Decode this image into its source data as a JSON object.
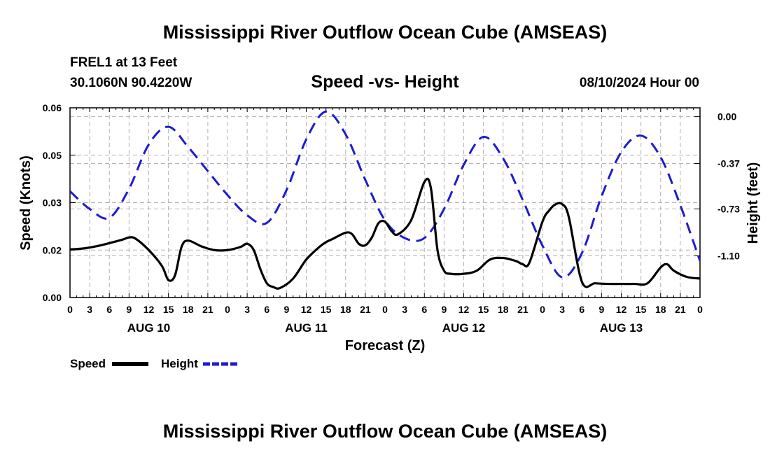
{
  "page": {
    "title": "Mississippi River Outflow Ocean Cube (AMSEAS)",
    "footer_title": "Mississippi River Outflow Ocean Cube (AMSEAS)",
    "station": "FREL1 at 13 Feet",
    "coords": "30.1060N  90.4220W",
    "date": "08/10/2024 Hour 00"
  },
  "chart_data": {
    "type": "line",
    "title": "Speed -vs- Height",
    "xlabel": "Forecast (Z)",
    "ylabel": "Speed (Knots)",
    "y2label": "Height (feet)",
    "xlim": [
      0,
      96
    ],
    "ylim": [
      0,
      0.06
    ],
    "y2lim": [
      -1.43,
      0.07
    ],
    "grid": true,
    "x_tick_step_hours": 3,
    "x_tick_labels": [
      "0",
      "3",
      "6",
      "9",
      "12",
      "15",
      "18",
      "21",
      "0",
      "3",
      "6",
      "9",
      "12",
      "15",
      "18",
      "21",
      "0",
      "3",
      "6",
      "9",
      "12",
      "15",
      "18",
      "21",
      "0",
      "3",
      "6",
      "9",
      "12",
      "15",
      "18",
      "21",
      "0"
    ],
    "y_tick_labels": [
      "0.00",
      "0.02",
      "0.03",
      "0.05",
      "0.06"
    ],
    "y_ticks": [
      0,
      0.015,
      0.03,
      0.045,
      0.06
    ],
    "y2_ticks": [
      0.0,
      -0.37,
      -0.73,
      -1.1
    ],
    "y2_tick_labels": [
      "0.00",
      "-0.37",
      "-0.73",
      "-1.10"
    ],
    "day_labels": [
      {
        "hour": 12,
        "label": "AUG 10"
      },
      {
        "hour": 36,
        "label": "AUG 11"
      },
      {
        "hour": 60,
        "label": "AUG 12"
      },
      {
        "hour": 84,
        "label": "AUG 13"
      }
    ],
    "legend": {
      "position": "bottom-left",
      "speed_label": "Speed",
      "height_label": "Height"
    },
    "colors": {
      "speed": "#000000",
      "height": "#1c1cd0",
      "grid": "#b4b4b4"
    },
    "series": [
      {
        "name": "Speed",
        "axis": "left",
        "x": [
          0,
          2,
          4,
          6,
          8,
          9,
          10,
          12,
          14,
          15,
          16,
          17,
          18,
          20,
          22,
          24,
          26,
          27,
          28,
          29,
          30,
          31,
          32,
          34,
          36,
          38,
          39,
          40,
          42,
          43,
          44,
          45,
          46,
          47,
          48,
          49,
          50,
          52,
          54,
          55,
          56,
          57,
          58,
          60,
          62,
          64,
          66,
          68,
          69,
          70,
          72,
          73,
          74,
          75,
          76,
          78,
          80,
          82,
          84,
          86,
          88,
          90,
          91,
          92,
          94,
          96
        ],
        "y": [
          0.0152,
          0.0155,
          0.0162,
          0.0172,
          0.0183,
          0.019,
          0.0186,
          0.015,
          0.01,
          0.0055,
          0.007,
          0.016,
          0.018,
          0.0162,
          0.015,
          0.015,
          0.016,
          0.017,
          0.015,
          0.009,
          0.0045,
          0.0033,
          0.003,
          0.006,
          0.012,
          0.016,
          0.0175,
          0.0185,
          0.0205,
          0.02,
          0.017,
          0.0165,
          0.019,
          0.0235,
          0.024,
          0.021,
          0.02,
          0.0245,
          0.0365,
          0.0345,
          0.015,
          0.0085,
          0.0075,
          0.0075,
          0.0085,
          0.012,
          0.0125,
          0.0115,
          0.0105,
          0.011,
          0.024,
          0.0275,
          0.0295,
          0.0295,
          0.0255,
          0.005,
          0.0045,
          0.0043,
          0.0043,
          0.0043,
          0.0045,
          0.0095,
          0.0105,
          0.0085,
          0.0065,
          0.006
        ]
      },
      {
        "name": "Height",
        "axis": "right",
        "x": [
          0,
          3,
          6,
          9,
          12,
          15,
          18,
          21,
          24,
          27,
          30,
          33,
          36,
          39,
          42,
          45,
          48,
          51,
          54,
          57,
          60,
          63,
          66,
          69,
          72,
          75,
          78,
          81,
          84,
          87,
          90,
          93,
          96
        ],
        "y": [
          -0.59,
          -0.73,
          -0.8,
          -0.57,
          -0.22,
          -0.08,
          -0.24,
          -0.43,
          -0.62,
          -0.78,
          -0.84,
          -0.58,
          -0.18,
          0.04,
          -0.14,
          -0.5,
          -0.82,
          -0.96,
          -0.96,
          -0.73,
          -0.38,
          -0.16,
          -0.33,
          -0.66,
          -1.02,
          -1.27,
          -1.08,
          -0.63,
          -0.28,
          -0.15,
          -0.32,
          -0.7,
          -1.14
        ]
      }
    ]
  }
}
